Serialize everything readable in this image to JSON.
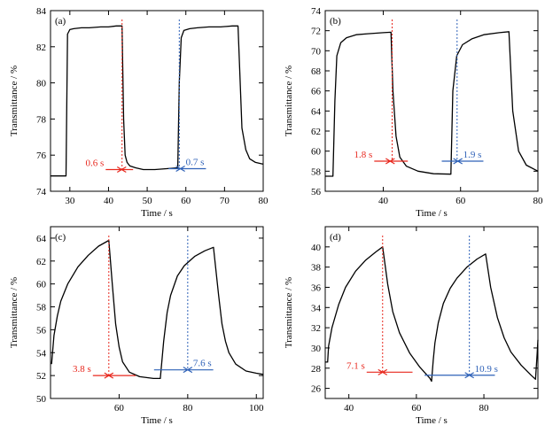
{
  "colors": {
    "red": "#e8281e",
    "blue": "#2f62b8",
    "black": "#000000"
  },
  "chart_data": [
    {
      "type": "line",
      "panel": "(a)",
      "xlabel": "Time / s",
      "ylabel": "Transmittance / %",
      "xlim": [
        25,
        80
      ],
      "ylim": [
        74,
        84
      ],
      "xticks": [
        30,
        40,
        50,
        60,
        70,
        80
      ],
      "yticks": [
        74,
        76,
        78,
        80,
        82,
        84
      ],
      "series": [
        {
          "x": [
            25,
            29,
            29.4,
            30,
            31,
            33,
            35,
            38,
            40,
            42,
            43.5,
            43.9,
            44.3,
            44.8,
            45.5,
            47,
            49,
            52,
            55,
            57.9,
            58.3,
            58.8,
            59.5,
            61,
            63,
            66,
            69,
            72,
            73.5,
            74.5,
            75.5,
            76.5,
            78,
            80
          ],
          "y": [
            74.85,
            74.85,
            82.7,
            82.95,
            83.0,
            83.05,
            83.05,
            83.1,
            83.1,
            83.15,
            83.15,
            78.0,
            76.0,
            75.6,
            75.4,
            75.3,
            75.2,
            75.2,
            75.25,
            75.3,
            80.0,
            82.5,
            82.9,
            83.0,
            83.05,
            83.1,
            83.1,
            83.15,
            83.15,
            77.5,
            76.3,
            75.8,
            75.6,
            75.5
          ]
        }
      ],
      "annotations": [
        {
          "label": "0.6 s",
          "color": "red",
          "vline_x": 43.5,
          "arrow": [
            43.4,
            44.3
          ],
          "y": 75.2
        },
        {
          "label": "0.7 s",
          "color": "blue",
          "vline_x": 58.3,
          "arrow": [
            57.6,
            58.6
          ],
          "y": 75.25
        }
      ]
    },
    {
      "type": "line",
      "panel": "(b)",
      "xlabel": "Time / s",
      "ylabel": "Transmittance / %",
      "xlim": [
        25,
        80
      ],
      "ylim": [
        56,
        74
      ],
      "xticks": [
        40,
        60,
        80
      ],
      "yticks": [
        56,
        58,
        60,
        62,
        64,
        66,
        68,
        70,
        72,
        74
      ],
      "series": [
        {
          "x": [
            25,
            27,
            27.5,
            28,
            29,
            30.5,
            33,
            36,
            40,
            42,
            42.5,
            43.3,
            44.3,
            46,
            49,
            53,
            57.5,
            58,
            59,
            60.5,
            63,
            66,
            70,
            72.5,
            73.5,
            75,
            77,
            80
          ],
          "y": [
            57.5,
            57.5,
            65.0,
            69.5,
            70.8,
            71.3,
            71.6,
            71.7,
            71.8,
            71.85,
            66.0,
            61.5,
            59.4,
            58.5,
            58.0,
            57.75,
            57.7,
            66.0,
            69.5,
            70.6,
            71.2,
            71.6,
            71.8,
            71.9,
            64.0,
            60.0,
            58.6,
            58.0
          ]
        }
      ],
      "annotations": [
        {
          "label": "1.8 s",
          "color": "red",
          "vline_x": 42.3,
          "arrow": [
            41.8,
            44.3
          ],
          "y": 59.0
        },
        {
          "label": "1.9 s",
          "color": "blue",
          "vline_x": 59.1,
          "arrow": [
            57.2,
            59.3
          ],
          "y": 59.0
        }
      ]
    },
    {
      "type": "line",
      "panel": "(c)",
      "xlabel": "Time / s",
      "ylabel": "Transmittance / %",
      "xlim": [
        40,
        102
      ],
      "ylim": [
        50,
        65
      ],
      "xticks": [
        60,
        80,
        100
      ],
      "yticks": [
        50,
        52,
        54,
        56,
        58,
        60,
        62,
        64
      ],
      "series": [
        {
          "x": [
            40.3,
            41,
            42,
            43,
            45,
            48,
            51,
            54,
            57,
            58,
            59,
            60,
            61,
            63,
            66,
            70,
            72,
            73,
            74,
            75,
            77,
            79,
            82,
            85,
            87.5,
            89,
            90,
            91,
            92,
            94,
            97,
            100,
            102
          ],
          "y": [
            53.0,
            55.5,
            57.2,
            58.5,
            60.0,
            61.5,
            62.5,
            63.3,
            63.8,
            60.0,
            56.5,
            54.5,
            53.2,
            52.3,
            51.9,
            51.75,
            51.75,
            55.0,
            57.5,
            59.0,
            60.7,
            61.6,
            62.4,
            62.9,
            63.2,
            59.0,
            56.5,
            55.0,
            54.0,
            53.0,
            52.4,
            52.2,
            52.1
          ]
        }
      ],
      "annotations": [
        {
          "label": "3.8 s",
          "color": "red",
          "vline_x": 57.0,
          "arrow": [
            57.0,
            62.5
          ],
          "y": 52.0
        },
        {
          "label": "7.6 s",
          "color": "blue",
          "vline_x": 80.0,
          "arrow": [
            72.5,
            80.0
          ],
          "y": 52.5
        }
      ]
    },
    {
      "type": "line",
      "panel": "(d)",
      "xlabel": "Time / s",
      "ylabel": "Transmittance / %",
      "xlim": [
        33,
        96
      ],
      "ylim": [
        25,
        42
      ],
      "xticks": [
        40,
        60,
        80
      ],
      "yticks": [
        26,
        28,
        30,
        32,
        34,
        36,
        38,
        40
      ],
      "series": [
        {
          "x": [
            33,
            33.7,
            34,
            35,
            37,
            39,
            42,
            45,
            48,
            50,
            51.5,
            53,
            55,
            58,
            61,
            64,
            64.5,
            65,
            65.5,
            66.5,
            68,
            70,
            72,
            75,
            78,
            80.5,
            82,
            84,
            86,
            88,
            91,
            94,
            95.3,
            95.8,
            96
          ],
          "y": [
            28.6,
            28.6,
            30.2,
            32.0,
            34.3,
            36.0,
            37.6,
            38.7,
            39.5,
            40.0,
            36.3,
            33.6,
            31.5,
            29.5,
            28.1,
            27.0,
            26.7,
            28.8,
            30.5,
            32.5,
            34.4,
            35.9,
            36.9,
            38.0,
            38.8,
            39.3,
            36.0,
            33.0,
            31.0,
            29.6,
            28.3,
            27.3,
            26.9,
            29.5,
            30.8
          ]
        }
      ],
      "annotations": [
        {
          "label": "7.1 s",
          "color": "red",
          "vline_x": 50.0,
          "arrow": [
            50.0,
            56.5
          ],
          "y": 27.6
        },
        {
          "label": "10.9 s",
          "color": "blue",
          "vline_x": 75.7,
          "arrow": [
            64.8,
            75.7
          ],
          "y": 27.3
        }
      ]
    }
  ]
}
